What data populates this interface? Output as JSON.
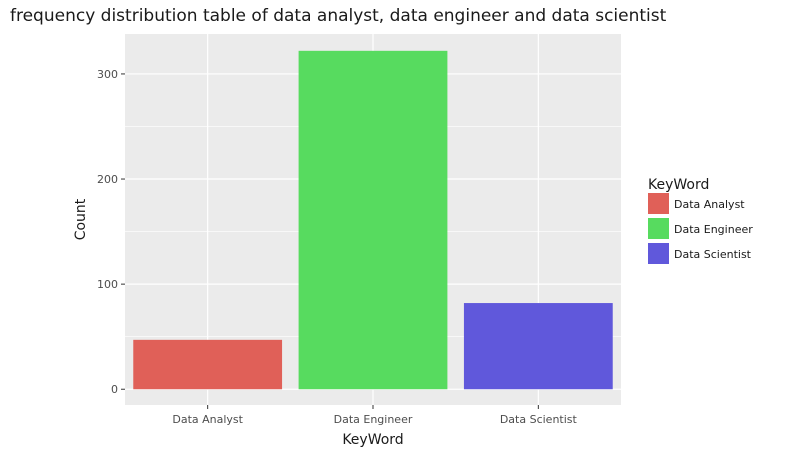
{
  "chart_data": {
    "type": "bar",
    "title": "frequency distribution table of data analyst, data engineer and data scientist",
    "xlabel": "KeyWord",
    "ylabel": "Count",
    "categories": [
      "Data Analyst",
      "Data Engineer",
      "Data Scientist"
    ],
    "values": [
      47,
      322,
      82
    ],
    "colors": [
      "#e06058",
      "#57db5f",
      "#6058db"
    ],
    "yticks": [
      0,
      100,
      200,
      300
    ],
    "ylim": [
      -15,
      338
    ],
    "grid": true,
    "legend": {
      "title": "KeyWord",
      "placement": "right",
      "items": [
        "Data Analyst",
        "Data Engineer",
        "Data Scientist"
      ]
    }
  }
}
